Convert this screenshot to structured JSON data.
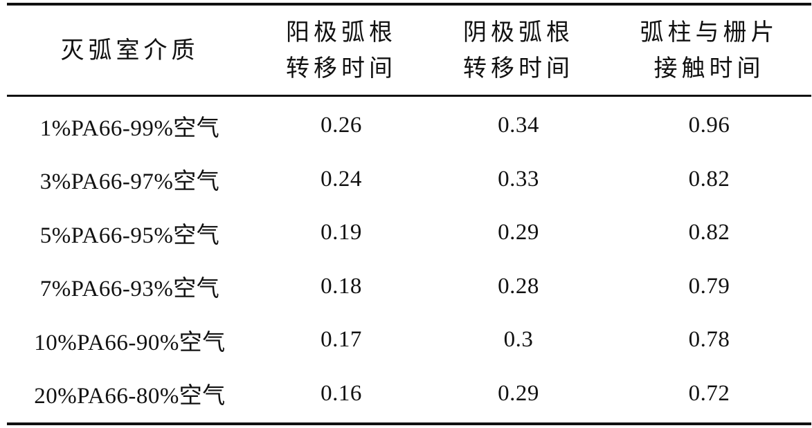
{
  "table": {
    "headers": [
      {
        "lines": [
          "灭弧室介质"
        ]
      },
      {
        "lines": [
          "阳极弧根",
          "转移时间"
        ]
      },
      {
        "lines": [
          "阴极弧根",
          "转移时间"
        ]
      },
      {
        "lines": [
          "弧柱与栅片",
          "接触时间"
        ]
      }
    ],
    "rows": [
      {
        "medium": "1%PA66-99%空气",
        "anode": "0.26",
        "cathode": "0.34",
        "contact": "0.96"
      },
      {
        "medium": "3%PA66-97%空气",
        "anode": "0.24",
        "cathode": "0.33",
        "contact": "0.82"
      },
      {
        "medium": "5%PA66-95%空气",
        "anode": "0.19",
        "cathode": "0.29",
        "contact": "0.82"
      },
      {
        "medium": "7%PA66-93%空气",
        "anode": "0.18",
        "cathode": "0.28",
        "contact": "0.79"
      },
      {
        "medium": "10%PA66-90%空气",
        "anode": "0.17",
        "cathode": "0.3",
        "contact": "0.78"
      },
      {
        "medium": "20%PA66-80%空气",
        "anode": "0.16",
        "cathode": "0.29",
        "contact": "0.72"
      }
    ]
  }
}
